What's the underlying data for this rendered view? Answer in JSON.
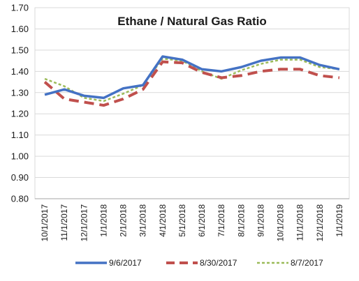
{
  "chart_data": {
    "type": "line",
    "title": "Ethane / Natural Gas Ratio",
    "categories": [
      "10/1/2017",
      "11/1/2017",
      "12/1/2017",
      "1/1/2018",
      "2/1/2018",
      "3/1/2018",
      "4/1/2018",
      "5/1/2018",
      "6/1/2018",
      "7/1/2018",
      "8/1/2018",
      "9/1/2018",
      "10/1/2018",
      "11/1/2018",
      "12/1/2018",
      "1/1/2019"
    ],
    "yticks": [
      "0.80",
      "0.90",
      "1.00",
      "1.10",
      "1.20",
      "1.30",
      "1.40",
      "1.50",
      "1.60",
      "1.70"
    ],
    "ylim": [
      0.8,
      1.7
    ],
    "grid": true,
    "legend_position": "bottom",
    "series": [
      {
        "name": "9/6/2017",
        "color": "#4472c4",
        "style": "solid",
        "values": [
          1.29,
          1.315,
          1.285,
          1.275,
          1.32,
          1.335,
          1.47,
          1.455,
          1.41,
          1.4,
          1.42,
          1.45,
          1.465,
          1.465,
          1.43,
          1.41
        ]
      },
      {
        "name": "8/30/2017",
        "color": "#c0504d",
        "style": "dashed",
        "values": [
          1.35,
          1.27,
          1.255,
          1.24,
          1.27,
          1.315,
          1.445,
          1.44,
          1.395,
          1.37,
          1.38,
          1.4,
          1.41,
          1.41,
          1.38,
          1.37
        ]
      },
      {
        "name": "8/7/2017",
        "color": "#9bbb59",
        "style": "dotted",
        "values": [
          1.365,
          1.33,
          1.275,
          1.26,
          1.295,
          1.335,
          1.46,
          1.45,
          1.4,
          1.365,
          1.405,
          1.435,
          1.455,
          1.455,
          1.42,
          1.41
        ]
      }
    ]
  }
}
